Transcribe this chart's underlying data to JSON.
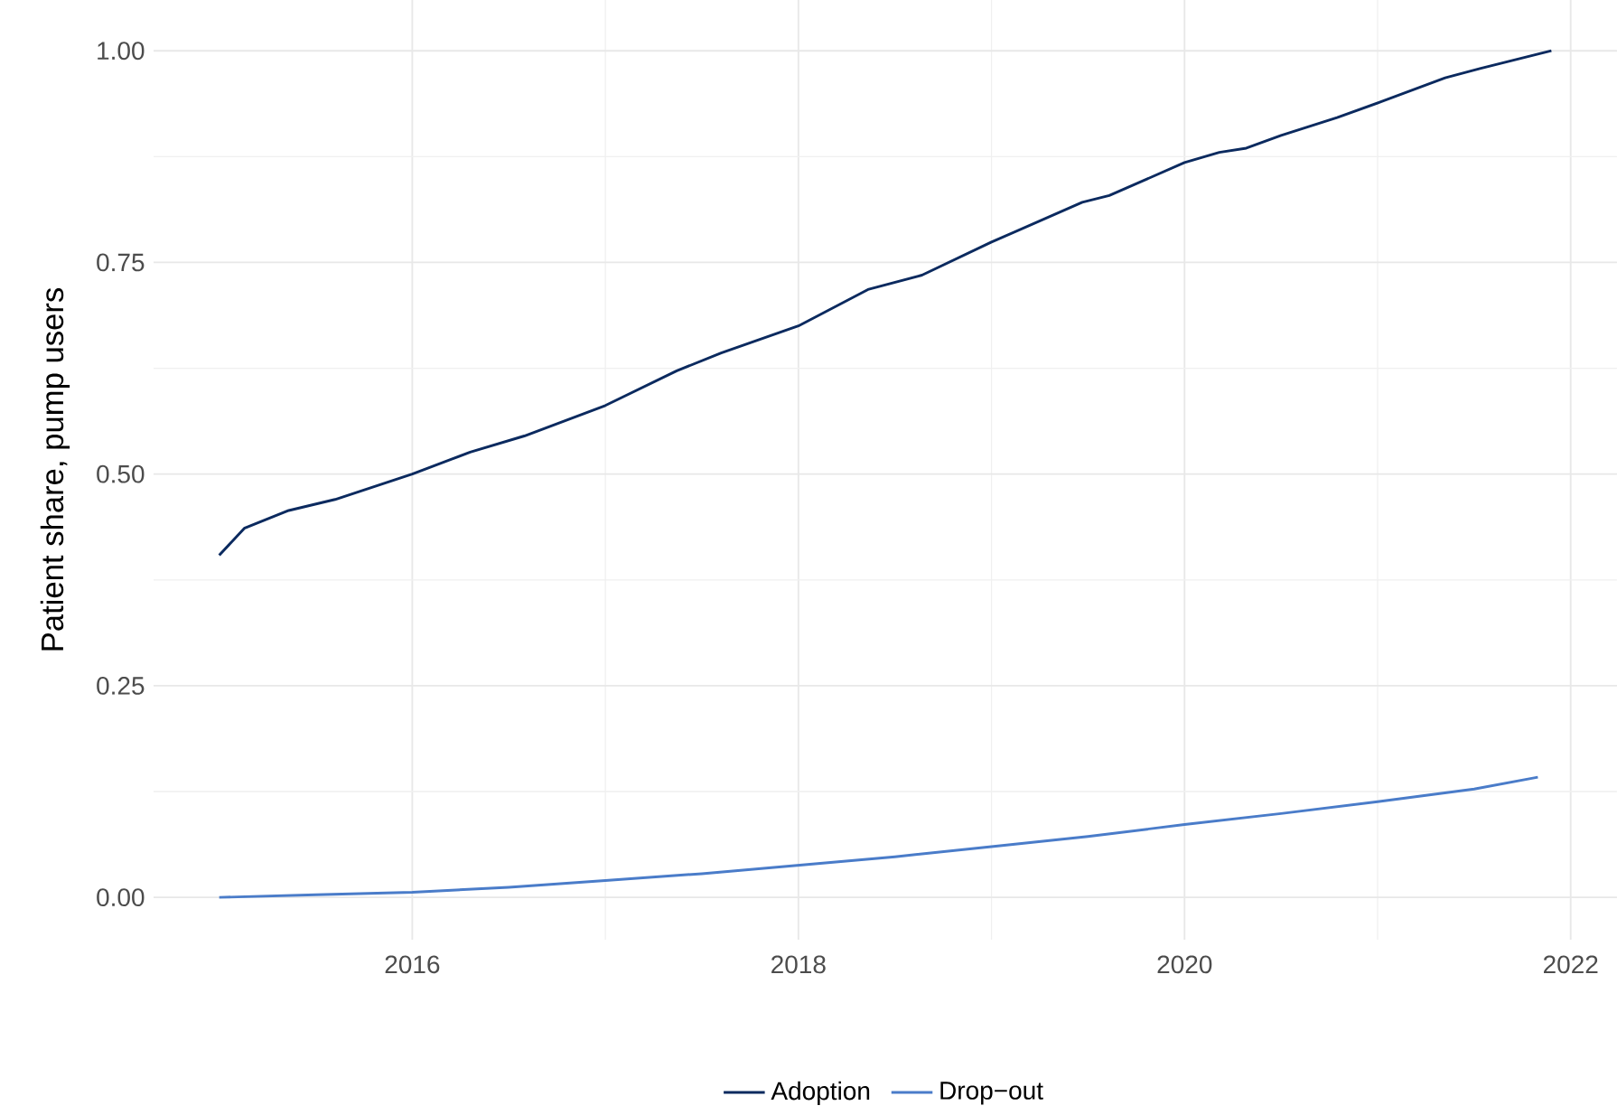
{
  "chart_data": {
    "type": "line",
    "ylabel": "Patient share, pump users",
    "xlim": [
      2014.66,
      2022.24
    ],
    "xticks": [
      2016,
      2018,
      2020,
      2022
    ],
    "ylim": [
      -0.05,
      1.06
    ],
    "yticks": [
      {
        "value": 0,
        "label": "0.00"
      },
      {
        "value": 0.25,
        "label": "0.25"
      },
      {
        "value": 0.5,
        "label": "0.50"
      },
      {
        "value": 0.75,
        "label": "0.75"
      },
      {
        "value": 1,
        "label": "1.00"
      }
    ],
    "grid": true,
    "legend": "bottom",
    "series": [
      {
        "name": "Adoption",
        "color": "#0b2a5f",
        "x": [
          2015.0,
          2015.13,
          2015.36,
          2015.6,
          2016.0,
          2016.3,
          2016.58,
          2017.0,
          2017.37,
          2017.6,
          2018.0,
          2018.36,
          2018.64,
          2019.0,
          2019.47,
          2019.61,
          2020.0,
          2020.18,
          2020.32,
          2020.5,
          2020.79,
          2021.02,
          2021.35,
          2021.53,
          2021.9
        ],
        "values": [
          0.404,
          0.436,
          0.457,
          0.47,
          0.5,
          0.526,
          0.545,
          0.581,
          0.622,
          0.643,
          0.675,
          0.718,
          0.735,
          0.774,
          0.821,
          0.829,
          0.868,
          0.88,
          0.885,
          0.9,
          0.921,
          0.94,
          0.968,
          0.979,
          1.0
        ]
      },
      {
        "name": "Drop−out",
        "color": "#4a7cc9",
        "x": [
          2015.0,
          2015.5,
          2016.0,
          2016.5,
          2017.0,
          2017.5,
          2018.0,
          2018.5,
          2019.0,
          2019.5,
          2020.0,
          2020.5,
          2021.0,
          2021.5,
          2021.83
        ],
        "values": [
          0.0,
          0.003,
          0.006,
          0.012,
          0.02,
          0.028,
          0.038,
          0.048,
          0.06,
          0.072,
          0.086,
          0.099,
          0.113,
          0.128,
          0.142
        ]
      }
    ]
  }
}
